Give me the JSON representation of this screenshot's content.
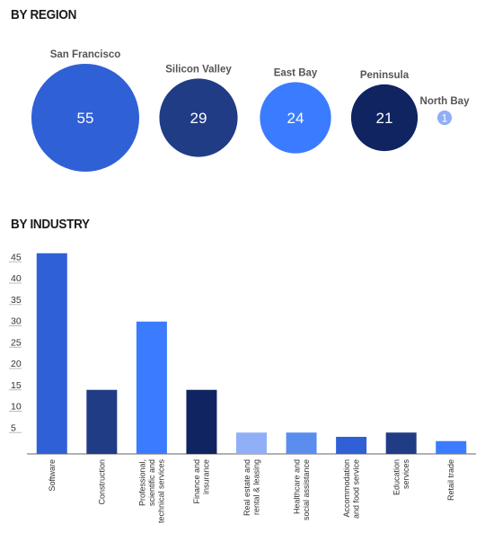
{
  "region_title": "BY REGION",
  "industry_title": "BY INDUSTRY",
  "chart_data": [
    {
      "type": "bubble",
      "title": "BY REGION",
      "categories": [
        "San Francisco",
        "Silicon Valley",
        "East Bay",
        "Peninsula",
        "North Bay"
      ],
      "values": [
        55,
        29,
        24,
        21,
        1
      ],
      "colors": [
        "#3060d6",
        "#203c85",
        "#3b7bff",
        "#0f2461",
        "#8fb0f7"
      ]
    },
    {
      "type": "bar",
      "title": "BY INDUSTRY",
      "categories": [
        "Software",
        "Construction",
        "Professional, scientific and technical services",
        "Finance and insurance",
        "Real estate and rental & leasing",
        "Healthcare and social assistance",
        "Accommodation and food service",
        "Education services",
        "Retail trade"
      ],
      "category_lines": [
        [
          "Software"
        ],
        [
          "Construction"
        ],
        [
          "Professional,",
          "scientific and",
          "technical services"
        ],
        [
          "Finance and",
          "insurance"
        ],
        [
          "Real estate and",
          "rental & leasing"
        ],
        [
          "Healthcare and",
          "social assistance"
        ],
        [
          "Accommodation",
          "and food service"
        ],
        [
          "Education",
          "services"
        ],
        [
          "Retail trade"
        ]
      ],
      "values": [
        47,
        15,
        31,
        15,
        5,
        5,
        4,
        5,
        3
      ],
      "colors": [
        "#3060d6",
        "#203c85",
        "#3b7bff",
        "#0f2461",
        "#8fb0f7",
        "#5b8def",
        "#3060d6",
        "#203c85",
        "#3b7bff"
      ],
      "yticks": [
        5,
        10,
        15,
        20,
        25,
        30,
        35,
        40,
        45
      ],
      "ylim": [
        0,
        48
      ],
      "grid": false
    }
  ]
}
